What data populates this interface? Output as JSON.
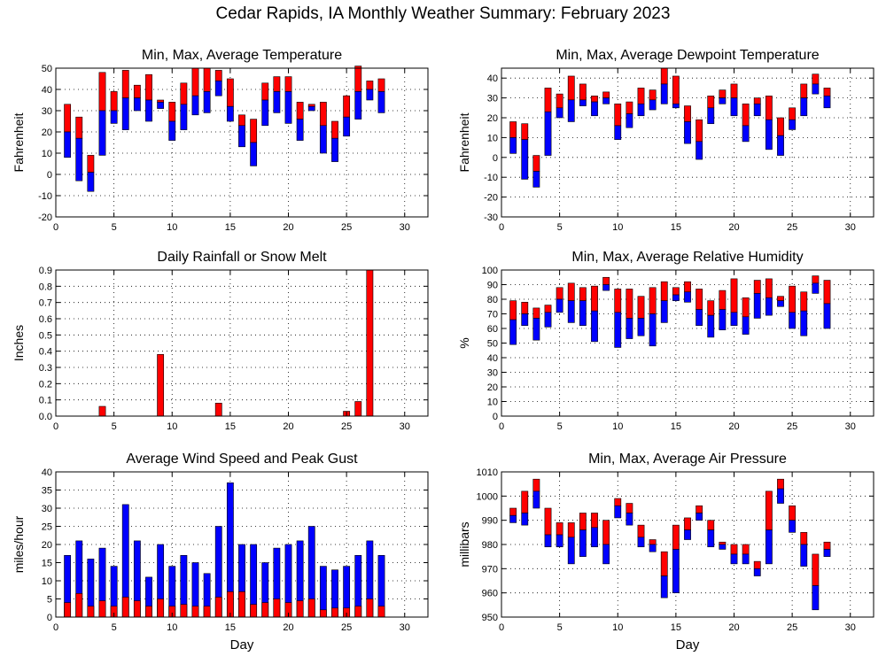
{
  "page_title": "Cedar Rapids, IA Monthly Weather Summary: February 2023",
  "colors": {
    "max": "#ff0000",
    "min": "#0000ff",
    "axis": "#000000",
    "grid": "#000000"
  },
  "chart_data": [
    {
      "id": "temp",
      "type": "bar",
      "title": "Min, Max, Average Temperature",
      "ylabel": "Fahrenheit",
      "xlabel": "",
      "xlim": [
        0,
        32
      ],
      "ylim": [
        -20,
        50
      ],
      "xticks": [
        0,
        5,
        10,
        15,
        20,
        25,
        30
      ],
      "yticks": [
        -20,
        -10,
        0,
        10,
        20,
        30,
        40,
        50
      ],
      "grid": true,
      "days": [
        1,
        2,
        3,
        4,
        5,
        6,
        7,
        8,
        9,
        10,
        11,
        12,
        13,
        14,
        15,
        16,
        17,
        18,
        19,
        20,
        21,
        22,
        23,
        24,
        25,
        26,
        27,
        28
      ],
      "min": [
        8,
        -3,
        -8,
        9,
        24,
        21,
        30,
        25,
        31,
        16,
        21,
        28,
        29,
        37,
        25,
        13,
        4,
        23,
        29,
        24,
        16,
        30,
        10,
        6,
        18,
        26,
        35,
        29
      ],
      "avg": [
        20,
        17,
        1,
        30,
        30,
        36,
        36,
        35,
        34,
        25,
        33,
        37,
        39,
        44,
        32,
        23,
        15,
        35,
        39,
        39,
        26,
        32,
        23,
        17,
        27,
        39,
        40,
        39
      ],
      "max": [
        33,
        27,
        9,
        48,
        39,
        49,
        42,
        47,
        35,
        34,
        43,
        50,
        50,
        49,
        45,
        28,
        26,
        43,
        46,
        46,
        34,
        33,
        34,
        25,
        37,
        51,
        44,
        45
      ]
    },
    {
      "id": "dewpoint",
      "type": "bar",
      "title": "Min, Max, Average Dewpoint Temperature",
      "ylabel": "Fahrenheit",
      "xlabel": "",
      "xlim": [
        0,
        32
      ],
      "ylim": [
        -30,
        45
      ],
      "xticks": [
        0,
        5,
        10,
        15,
        20,
        25,
        30
      ],
      "yticks": [
        -30,
        -20,
        -10,
        0,
        10,
        20,
        30,
        40
      ],
      "grid": true,
      "days": [
        1,
        2,
        3,
        4,
        5,
        6,
        7,
        8,
        9,
        10,
        11,
        12,
        13,
        14,
        15,
        16,
        17,
        18,
        19,
        20,
        21,
        22,
        23,
        24,
        25,
        26,
        27,
        28
      ],
      "min": [
        2,
        -11,
        -15,
        1,
        20,
        18,
        26,
        21,
        27,
        9,
        15,
        21,
        24,
        27,
        25,
        7,
        -1,
        17,
        27,
        21,
        8,
        21,
        4,
        1,
        14,
        21,
        32,
        25
      ],
      "avg": [
        10,
        9,
        -7,
        23,
        25,
        29,
        29,
        28,
        30,
        16,
        22,
        27,
        29,
        37,
        27,
        18,
        8,
        25,
        30,
        30,
        16,
        27,
        19,
        11,
        19,
        30,
        37,
        31
      ],
      "max": [
        18,
        17,
        1,
        35,
        32,
        41,
        37,
        31,
        33,
        27,
        28,
        35,
        34,
        45,
        41,
        26,
        19,
        31,
        34,
        37,
        27,
        30,
        31,
        20,
        25,
        37,
        42,
        35
      ]
    },
    {
      "id": "rain",
      "type": "bar",
      "title": "Daily Rainfall or Snow Melt",
      "ylabel": "Inches",
      "xlabel": "",
      "xlim": [
        0,
        32
      ],
      "ylim": [
        0,
        0.9
      ],
      "xticks": [
        0,
        5,
        10,
        15,
        20,
        25,
        30
      ],
      "yticks": [
        0.0,
        0.1,
        0.2,
        0.3,
        0.4,
        0.5,
        0.6,
        0.7,
        0.8,
        0.9
      ],
      "ytick_labels": [
        "0.0",
        "0.1",
        "0.2",
        "0.3",
        "0.4",
        "0.5",
        "0.6",
        "0.7",
        "0.8",
        "0.9"
      ],
      "grid": true,
      "days": [
        4,
        9,
        14,
        25,
        26,
        27
      ],
      "values": [
        0.06,
        0.38,
        0.08,
        0.03,
        0.09,
        0.9
      ]
    },
    {
      "id": "rh",
      "type": "bar",
      "title": "Min, Max, Average Relative Humidity",
      "ylabel": "%",
      "xlabel": "",
      "xlim": [
        0,
        32
      ],
      "ylim": [
        0,
        100
      ],
      "xticks": [
        0,
        5,
        10,
        15,
        20,
        25,
        30
      ],
      "yticks": [
        0,
        10,
        20,
        30,
        40,
        50,
        60,
        70,
        80,
        90,
        100
      ],
      "grid": true,
      "days": [
        1,
        2,
        3,
        4,
        5,
        6,
        7,
        8,
        9,
        10,
        11,
        12,
        13,
        14,
        15,
        16,
        17,
        18,
        19,
        20,
        21,
        22,
        23,
        24,
        25,
        26,
        27,
        28
      ],
      "min": [
        49,
        62,
        52,
        61,
        71,
        64,
        62,
        51,
        86,
        47,
        53,
        55,
        48,
        64,
        79,
        78,
        62,
        54,
        59,
        62,
        56,
        67,
        69,
        75,
        60,
        55,
        84,
        60
      ],
      "avg": [
        66,
        70,
        67,
        71,
        80,
        79,
        79,
        72,
        90,
        71,
        67,
        67,
        70,
        79,
        83,
        85,
        73,
        69,
        73,
        71,
        68,
        84,
        81,
        79,
        71,
        72,
        91,
        77
      ],
      "max": [
        79,
        78,
        74,
        76,
        88,
        91,
        88,
        89,
        95,
        87,
        87,
        82,
        88,
        92,
        88,
        92,
        87,
        79,
        86,
        94,
        81,
        93,
        94,
        82,
        89,
        85,
        96,
        93
      ]
    },
    {
      "id": "wind",
      "type": "bar",
      "title": "Average Wind Speed and Peak Gust",
      "ylabel": "miles/hour",
      "xlabel": "Day",
      "xlim": [
        0,
        32
      ],
      "ylim": [
        0,
        40
      ],
      "xticks": [
        0,
        5,
        10,
        15,
        20,
        25,
        30
      ],
      "yticks": [
        0,
        5,
        10,
        15,
        20,
        25,
        30,
        35,
        40
      ],
      "grid": true,
      "days": [
        1,
        2,
        3,
        4,
        5,
        6,
        7,
        8,
        9,
        10,
        11,
        12,
        13,
        14,
        15,
        16,
        17,
        18,
        19,
        20,
        21,
        22,
        23,
        24,
        25,
        26,
        27,
        28
      ],
      "gust": [
        17,
        21,
        16,
        19,
        14,
        31,
        21,
        11,
        20,
        14,
        17,
        15,
        12,
        25,
        37,
        20,
        20,
        15,
        19,
        20,
        21,
        25,
        14,
        13,
        14,
        17,
        21,
        17
      ],
      "avg": [
        4,
        6.5,
        3,
        4.5,
        3,
        5.5,
        4.5,
        3,
        5,
        3,
        3.5,
        3,
        3,
        5.5,
        7,
        7,
        3.5,
        4,
        5,
        4,
        4.5,
        5,
        2,
        2.5,
        2.5,
        3,
        5,
        3
      ]
    },
    {
      "id": "pressure",
      "type": "bar",
      "title": "Min, Max, Average Air Pressure",
      "ylabel": "millibars",
      "xlabel": "Day",
      "xlim": [
        0,
        32
      ],
      "ylim": [
        950,
        1010
      ],
      "xticks": [
        0,
        5,
        10,
        15,
        20,
        25,
        30
      ],
      "yticks": [
        950,
        960,
        970,
        980,
        990,
        1000,
        1010
      ],
      "grid": true,
      "days": [
        1,
        2,
        3,
        4,
        5,
        6,
        7,
        8,
        9,
        10,
        11,
        12,
        13,
        14,
        15,
        16,
        17,
        18,
        19,
        20,
        21,
        22,
        23,
        24,
        25,
        26,
        27,
        28
      ],
      "min": [
        989,
        988,
        995,
        979,
        979,
        972,
        975,
        979,
        972,
        991,
        988,
        979,
        977,
        958,
        960,
        982,
        990,
        979,
        978,
        972,
        972,
        967,
        972,
        997,
        985,
        971,
        953,
        975
      ],
      "avg": [
        992,
        993,
        1002,
        984,
        984,
        983,
        986,
        987,
        980,
        996,
        993,
        983,
        980,
        967,
        978,
        986,
        993,
        986,
        980,
        976,
        976,
        970,
        986,
        1003,
        990,
        980,
        963,
        978
      ],
      "max": [
        995,
        1002,
        1007,
        995,
        989,
        989,
        993,
        993,
        990,
        999,
        997,
        988,
        982,
        977,
        988,
        991,
        996,
        990,
        981,
        980,
        980,
        973,
        1002,
        1007,
        996,
        985,
        976,
        981
      ]
    }
  ]
}
